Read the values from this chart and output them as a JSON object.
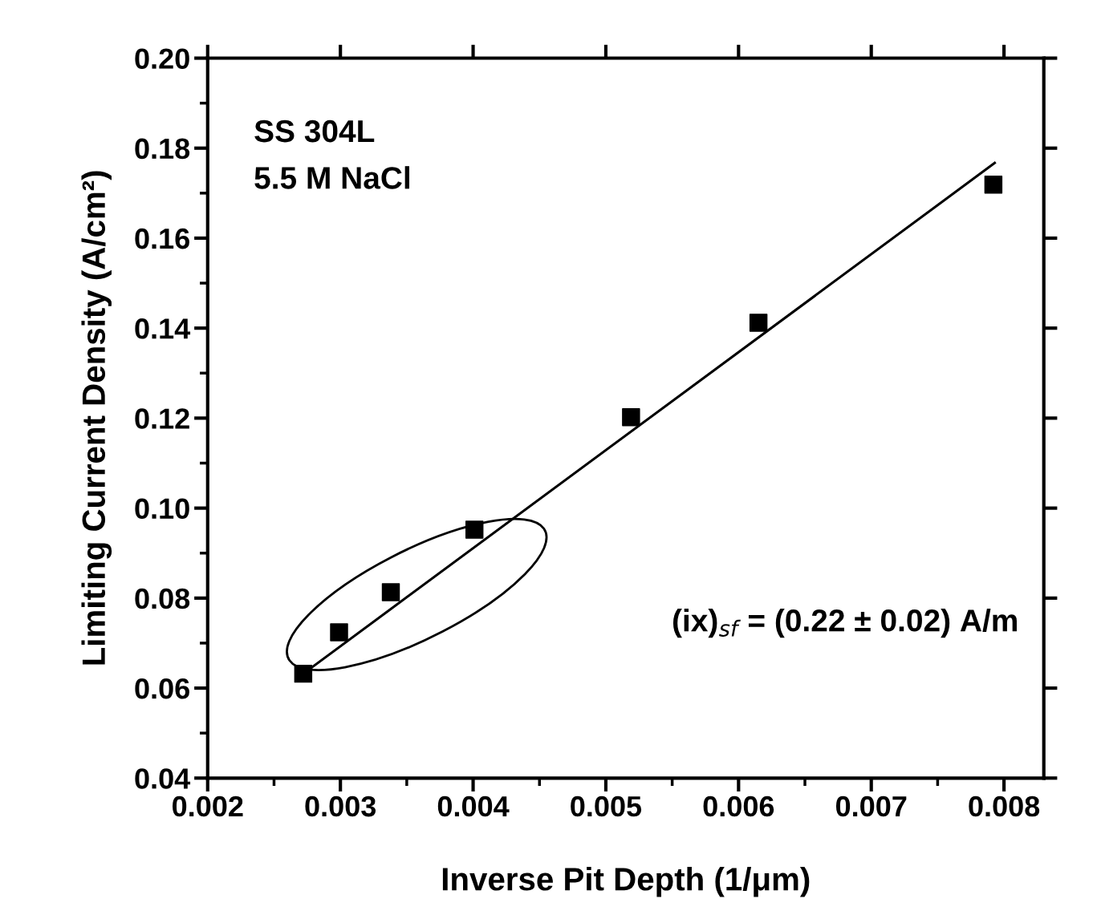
{
  "chart_data": {
    "type": "scatter",
    "xlabel": "Inverse Pit Depth (1/μm)",
    "ylabel": "Limiting Current Density (A/cm²)",
    "xlim": [
      0.002,
      0.0083
    ],
    "xticks": [
      0.002,
      0.003,
      0.004,
      0.005,
      0.006,
      0.007,
      0.008
    ],
    "ylim": [
      0.04,
      0.2
    ],
    "yticks": [
      0.04,
      0.06,
      0.08,
      {
        "value": 0.1,
        "label": "0.10"
      },
      0.12,
      0.14,
      0.16,
      0.18,
      {
        "value": 0.2,
        "label": "0.20"
      }
    ],
    "grid": false,
    "legend": false,
    "series": [
      {
        "marker": "square",
        "color": "#000000",
        "x": [
          0.00272,
          0.00299,
          0.00338,
          0.00401,
          0.00519,
          0.00615,
          0.00792
        ],
        "values": [
          0.0632,
          0.0724,
          0.0813,
          0.0952,
          0.1202,
          0.1412,
          0.1719
        ]
      },
      {
        "type": "line",
        "marker": "none",
        "color": "#000000",
        "x": [
          0.00272,
          0.00793
        ],
        "values": [
          0.0632,
          0.1767
        ],
        "line_style": "solid"
      }
    ],
    "annotations": [
      "SS 304L",
      "5.5 M NaCl",
      "(ix)$_{sf}$ = (0.22 ± 0.02) A/m"
    ]
  }
}
